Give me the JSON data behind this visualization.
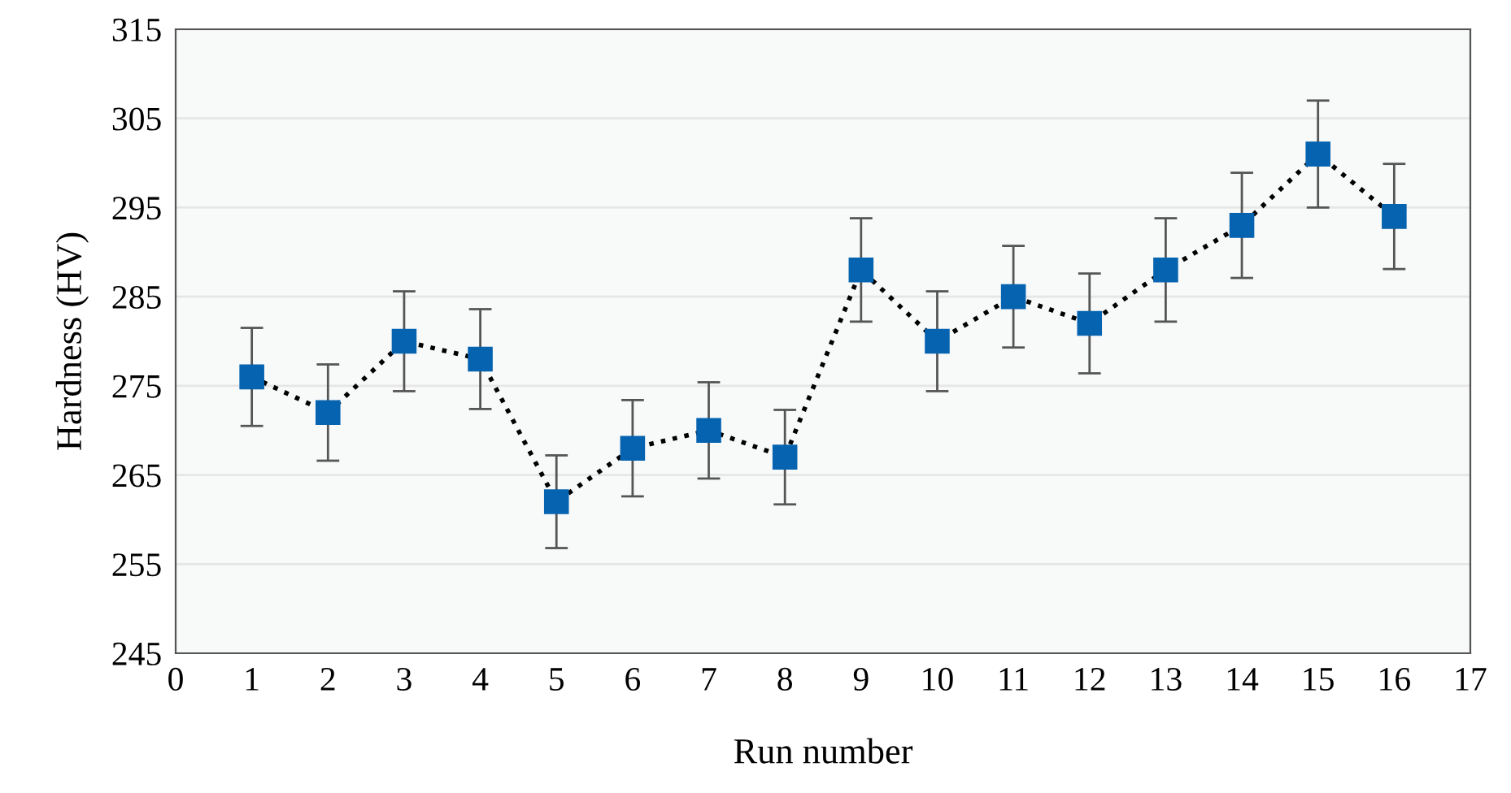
{
  "chart_data": {
    "type": "line",
    "xlabel": "Run number",
    "ylabel": "Hardness (HV)",
    "x": [
      1,
      2,
      3,
      4,
      5,
      6,
      7,
      8,
      9,
      10,
      11,
      12,
      13,
      14,
      15,
      16
    ],
    "series": [
      {
        "color": "#0563b0",
        "values": [
          276,
          272,
          280,
          278,
          262,
          268,
          270,
          267,
          288,
          280,
          285,
          282,
          288,
          293,
          301,
          294
        ],
        "errors": [
          5.5,
          5.4,
          5.6,
          5.6,
          5.2,
          5.4,
          5.4,
          5.3,
          5.8,
          5.6,
          5.7,
          5.6,
          5.8,
          5.9,
          6.0,
          5.9
        ]
      }
    ],
    "xlim": [
      0,
      17
    ],
    "xticks": [
      0,
      1,
      2,
      3,
      4,
      5,
      6,
      7,
      8,
      9,
      10,
      11,
      12,
      13,
      14,
      15,
      16,
      17
    ],
    "ylim": [
      245,
      315
    ],
    "yticks": [
      245,
      255,
      265,
      275,
      285,
      295,
      305,
      315
    ],
    "grid": "y",
    "marker": "square",
    "line_style": "dotted",
    "legend": false
  }
}
